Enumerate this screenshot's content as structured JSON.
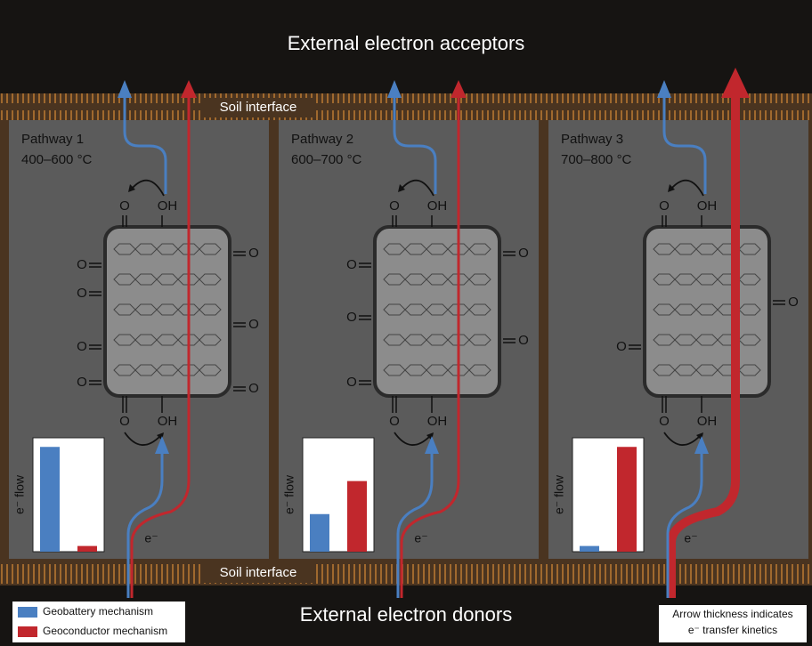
{
  "top_label": "External electron acceptors",
  "bottom_label": "External electron donors",
  "soil_interface_top": "Soil interface",
  "soil_interface_bottom": "Soil interface",
  "pathways": [
    {
      "name": "Pathway 1",
      "temperature": "400–600 °C",
      "electron_label": "e⁻",
      "groups": {
        "top": [
          "O",
          "OH"
        ],
        "bottom": [
          "O",
          "OH"
        ],
        "left": [
          "O",
          "O",
          "O",
          "O"
        ],
        "right": [
          "O",
          "O",
          "O"
        ]
      }
    },
    {
      "name": "Pathway 2",
      "temperature": "600–700 °C",
      "electron_label": "e⁻",
      "groups": {
        "top": [
          "O",
          "OH"
        ],
        "bottom": [
          "O",
          "OH"
        ],
        "left": [
          "O",
          "O",
          "O"
        ],
        "right": [
          "O",
          "O"
        ]
      }
    },
    {
      "name": "Pathway 3",
      "temperature": "700–800 °C",
      "electron_label": "e⁻",
      "groups": {
        "top": [
          "O",
          "OH"
        ],
        "bottom": [
          "O",
          "OH"
        ],
        "left": [
          "O"
        ],
        "right": [
          "O"
        ]
      }
    }
  ],
  "chart_data": [
    {
      "type": "bar",
      "y_label": "e⁻ flow",
      "categories": [
        null
      ],
      "ylim": [
        0,
        100
      ],
      "series": [
        {
          "name": "Geobattery mechanism",
          "color": "#4a7fc1",
          "values": [
            92
          ]
        },
        {
          "name": "Geoconductor mechanism",
          "color": "#c1272d",
          "values": [
            5
          ]
        }
      ]
    },
    {
      "type": "bar",
      "y_label": "e⁻ flow",
      "categories": [
        null
      ],
      "ylim": [
        0,
        100
      ],
      "series": [
        {
          "name": "Geobattery mechanism",
          "color": "#4a7fc1",
          "values": [
            33
          ]
        },
        {
          "name": "Geoconductor mechanism",
          "color": "#c1272d",
          "values": [
            62
          ]
        }
      ]
    },
    {
      "type": "bar",
      "y_label": "e⁻ flow",
      "categories": [
        null
      ],
      "ylim": [
        0,
        100
      ],
      "series": [
        {
          "name": "Geobattery mechanism",
          "color": "#4a7fc1",
          "values": [
            5
          ]
        },
        {
          "name": "Geoconductor mechanism",
          "color": "#c1272d",
          "values": [
            92
          ]
        }
      ]
    }
  ],
  "note": [
    "Arrow thickness indicates",
    "e⁻ transfer kinetics"
  ]
}
